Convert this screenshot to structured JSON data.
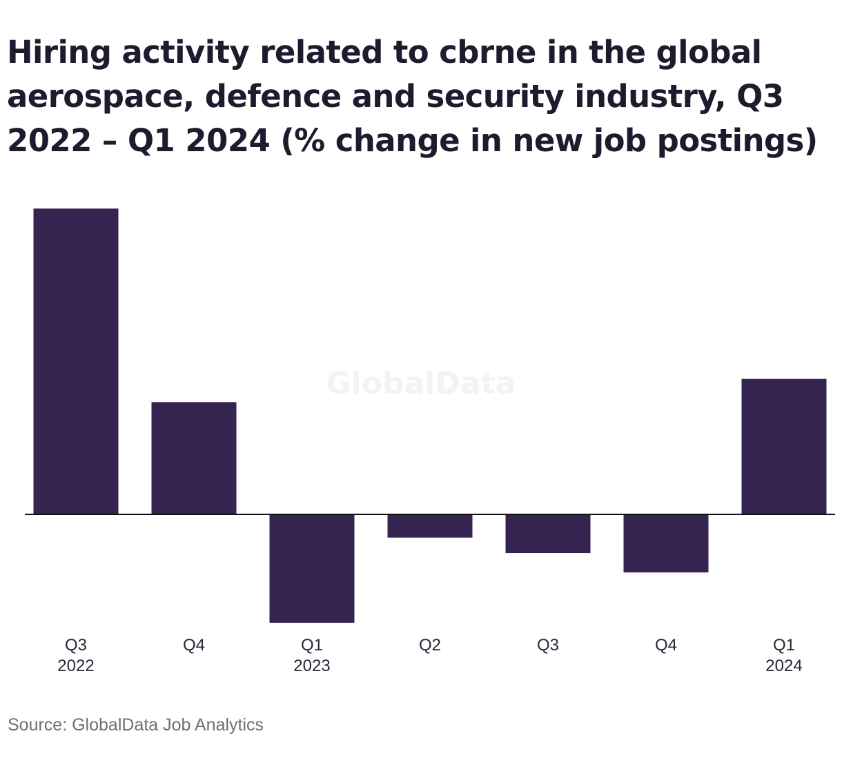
{
  "title": "Hiring activity related to cbrne in the global aerospace, defence and security industry, Q3 2022 – Q1 2024 (% change in new job postings)",
  "source": "Source: GlobalData Job Analytics",
  "watermark": "GlobalData",
  "colors": {
    "bar": "#35244f",
    "baseline": "#111111",
    "text": "#1e1b2e"
  },
  "chart_data": {
    "type": "bar",
    "categories": [
      [
        "Q3",
        "2022"
      ],
      [
        "Q4",
        ""
      ],
      [
        "Q1",
        "2023"
      ],
      [
        "Q2",
        ""
      ],
      [
        "Q3",
        ""
      ],
      [
        "Q4",
        ""
      ],
      [
        "Q1",
        "2024"
      ]
    ],
    "values": [
      79,
      29,
      -28,
      -6,
      -10,
      -15,
      35
    ],
    "ylim": [
      -28,
      79
    ],
    "grid": false,
    "legend": "none",
    "xlabel": "",
    "ylabel": ""
  }
}
